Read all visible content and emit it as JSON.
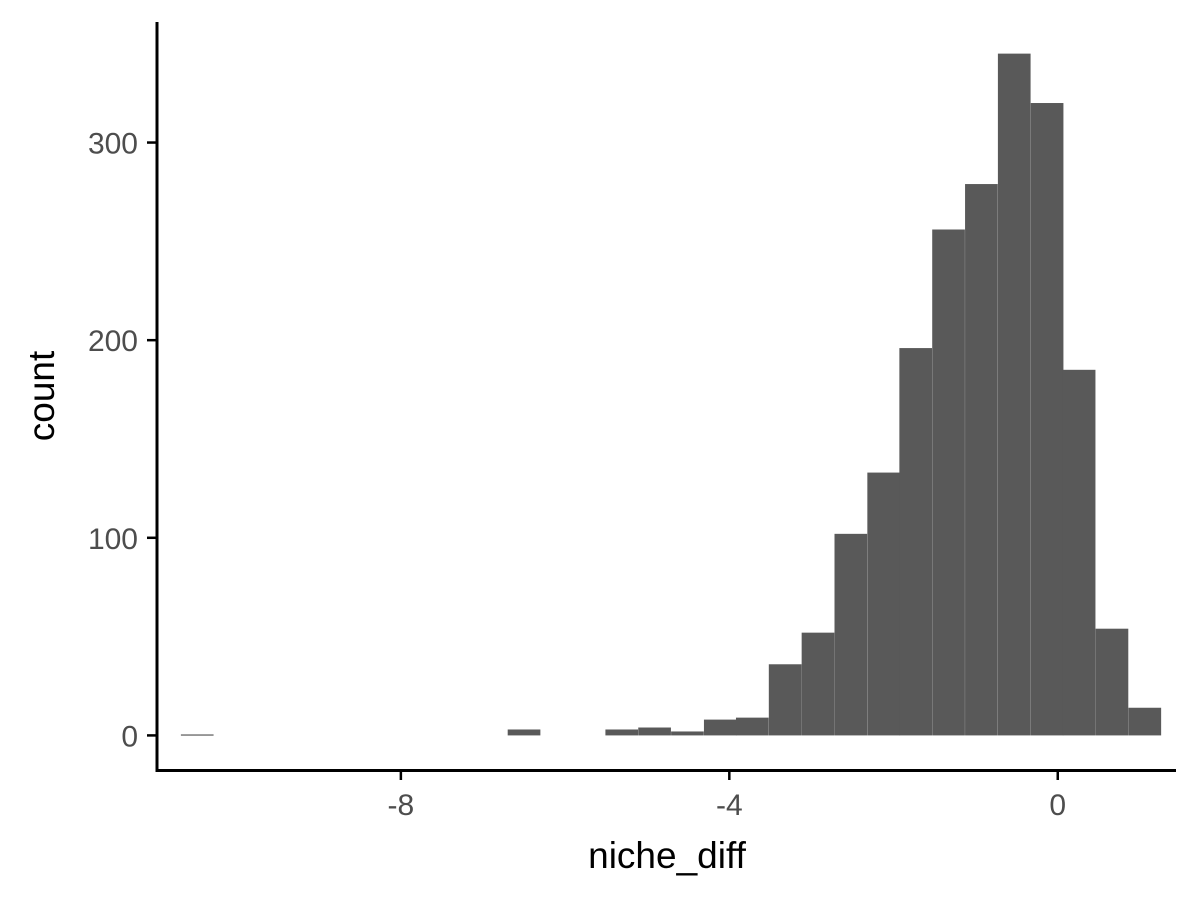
{
  "chart_data": {
    "type": "bar",
    "subtype": "histogram",
    "xlabel": "niche_diff",
    "ylabel": "count",
    "xlim": [
      -10.97,
      1.44
    ],
    "ylim": [
      -17.5,
      361
    ],
    "x_ticks": [
      {
        "value": -8,
        "label": "-8"
      },
      {
        "value": -4,
        "label": "-4"
      },
      {
        "value": 0,
        "label": "0"
      }
    ],
    "y_ticks": [
      {
        "value": 0,
        "label": "0"
      },
      {
        "value": 100,
        "label": "100"
      },
      {
        "value": 200,
        "label": "200"
      },
      {
        "value": 300,
        "label": "300"
      }
    ],
    "bin_width": 0.398,
    "bins": [
      {
        "x_center": -10.48,
        "count": 0.5
      },
      {
        "x_center": -6.5,
        "count": 3
      },
      {
        "x_center": -5.31,
        "count": 3
      },
      {
        "x_center": -4.91,
        "count": 4
      },
      {
        "x_center": -4.51,
        "count": 2
      },
      {
        "x_center": -4.11,
        "count": 8
      },
      {
        "x_center": -3.72,
        "count": 9
      },
      {
        "x_center": -3.32,
        "count": 36
      },
      {
        "x_center": -2.92,
        "count": 52
      },
      {
        "x_center": -2.52,
        "count": 102
      },
      {
        "x_center": -2.12,
        "count": 133
      },
      {
        "x_center": -1.73,
        "count": 196
      },
      {
        "x_center": -1.33,
        "count": 256
      },
      {
        "x_center": -0.93,
        "count": 279
      },
      {
        "x_center": -0.53,
        "count": 345
      },
      {
        "x_center": -0.13,
        "count": 320
      },
      {
        "x_center": 0.26,
        "count": 185
      },
      {
        "x_center": 0.66,
        "count": 54
      },
      {
        "x_center": 1.06,
        "count": 14
      }
    ],
    "bar_color": "#595959",
    "grid": false,
    "legend": "none"
  }
}
